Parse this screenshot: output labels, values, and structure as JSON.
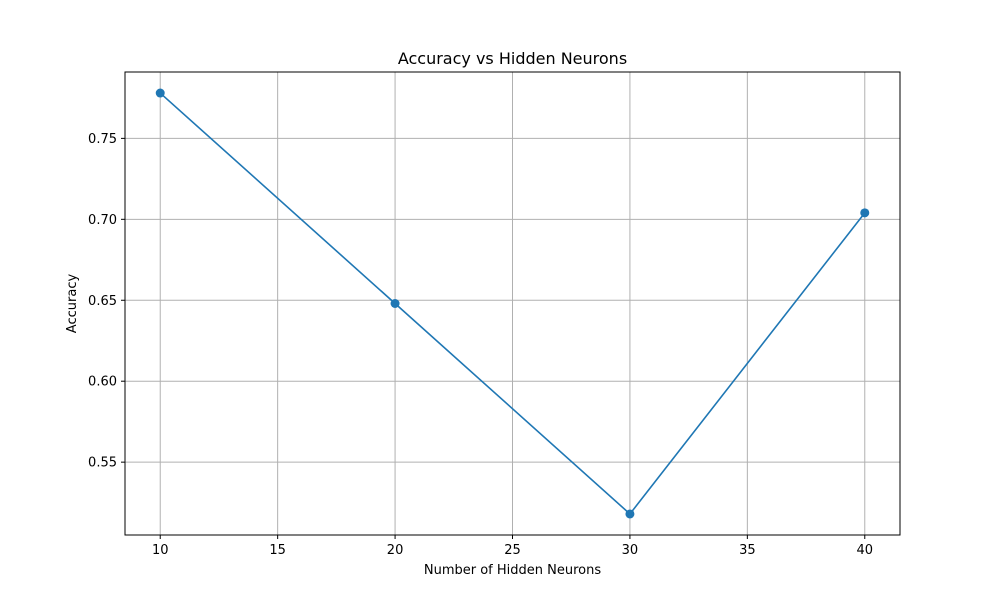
{
  "chart_data": {
    "type": "line",
    "title": "Accuracy vs Hidden Neurons",
    "xlabel": "Number of Hidden Neurons",
    "ylabel": "Accuracy",
    "x": [
      10,
      20,
      30,
      40
    ],
    "series": [
      {
        "values": [
          0.778,
          0.648,
          0.518,
          0.704
        ],
        "color": "#1f77b4",
        "marker": "circle"
      }
    ],
    "xlim": [
      8.5,
      41.5
    ],
    "ylim": [
      0.505,
      0.791
    ],
    "xticks": [
      10,
      15,
      20,
      25,
      30,
      35,
      40
    ],
    "xtick_labels": [
      "10",
      "15",
      "20",
      "25",
      "30",
      "35",
      "40"
    ],
    "yticks": [
      0.55,
      0.6,
      0.65,
      0.7,
      0.75
    ],
    "ytick_labels": [
      "0.55",
      "0.60",
      "0.65",
      "0.70",
      "0.75"
    ],
    "grid": true,
    "grid_color": "#b0b0b0"
  }
}
